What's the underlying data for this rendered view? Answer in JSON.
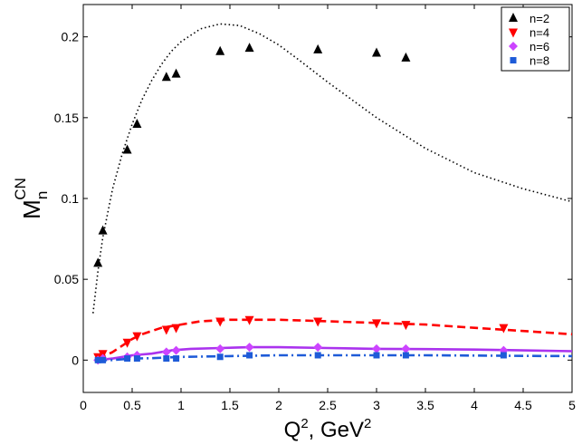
{
  "chart_data": {
    "type": "scatter",
    "xlabel": {
      "main": "Q",
      "sup1": "2",
      "rest": ", GeV",
      "sup2": "2"
    },
    "ylabel": {
      "main": "M",
      "sub": "n",
      "sup": "CN"
    },
    "xlim": [
      0,
      5
    ],
    "ylim": [
      -0.02,
      0.22
    ],
    "x_ticks": [
      0,
      0.5,
      1,
      1.5,
      2,
      2.5,
      3,
      3.5,
      4,
      4.5,
      5
    ],
    "x_tick_labels": [
      "0",
      "0.5",
      "1",
      "1.5",
      "2",
      "2.5",
      "3",
      "3.5",
      "4",
      "4.5",
      "5"
    ],
    "y_ticks": [
      0,
      0.05,
      0.1,
      0.15,
      0.2
    ],
    "y_tick_labels": [
      "0",
      "0.05",
      "0.1",
      "0.15",
      "0.2"
    ],
    "grid": false,
    "legend_position": "top-right",
    "series": [
      {
        "name": "n=2",
        "marker": "triangle-up",
        "color": "#000000",
        "points": [
          [
            0.15,
            0.06
          ],
          [
            0.2,
            0.08
          ],
          [
            0.45,
            0.13
          ],
          [
            0.55,
            0.146
          ],
          [
            0.85,
            0.175
          ],
          [
            0.95,
            0.177
          ],
          [
            1.4,
            0.191
          ],
          [
            1.7,
            0.193
          ],
          [
            2.4,
            0.192
          ],
          [
            3.0,
            0.19
          ],
          [
            3.3,
            0.187
          ]
        ]
      },
      {
        "name": "n=4",
        "marker": "triangle-down",
        "color": "#ff0000",
        "points": [
          [
            0.15,
            0.002
          ],
          [
            0.2,
            0.004
          ],
          [
            0.45,
            0.011
          ],
          [
            0.55,
            0.015
          ],
          [
            0.85,
            0.019
          ],
          [
            0.95,
            0.02
          ],
          [
            1.4,
            0.024
          ],
          [
            1.7,
            0.025
          ],
          [
            2.4,
            0.024
          ],
          [
            3.0,
            0.023
          ],
          [
            3.3,
            0.022
          ],
          [
            4.3,
            0.02
          ]
        ]
      },
      {
        "name": "n=6",
        "marker": "diamond",
        "color": "#cc44ff",
        "points": [
          [
            0.15,
            0.0
          ],
          [
            0.2,
            0.001
          ],
          [
            0.45,
            0.002
          ],
          [
            0.55,
            0.003
          ],
          [
            0.85,
            0.005
          ],
          [
            0.95,
            0.006
          ],
          [
            1.4,
            0.007
          ],
          [
            1.7,
            0.008
          ],
          [
            2.4,
            0.008
          ],
          [
            3.0,
            0.007
          ],
          [
            3.3,
            0.007
          ],
          [
            4.3,
            0.006
          ]
        ]
      },
      {
        "name": "n=8",
        "marker": "square",
        "color": "#1e5bd8",
        "points": [
          [
            0.15,
            0.0
          ],
          [
            0.2,
            0.0
          ],
          [
            0.45,
            0.001
          ],
          [
            0.55,
            0.001
          ],
          [
            0.85,
            0.001
          ],
          [
            0.95,
            0.001
          ],
          [
            1.4,
            0.002
          ],
          [
            1.7,
            0.003
          ],
          [
            2.4,
            0.003
          ],
          [
            3.0,
            0.003
          ],
          [
            3.3,
            0.003
          ],
          [
            4.3,
            0.003
          ]
        ]
      }
    ],
    "curves": [
      {
        "style": "dotted",
        "color": "#000000",
        "points": [
          [
            0.1,
            0.029
          ],
          [
            0.15,
            0.055
          ],
          [
            0.2,
            0.076
          ],
          [
            0.3,
            0.106
          ],
          [
            0.4,
            0.128
          ],
          [
            0.5,
            0.146
          ],
          [
            0.6,
            0.161
          ],
          [
            0.7,
            0.173
          ],
          [
            0.8,
            0.183
          ],
          [
            0.9,
            0.191
          ],
          [
            1.0,
            0.197
          ],
          [
            1.2,
            0.205
          ],
          [
            1.4,
            0.208
          ],
          [
            1.6,
            0.207
          ],
          [
            1.8,
            0.202
          ],
          [
            2.0,
            0.195
          ],
          [
            2.2,
            0.186
          ],
          [
            2.5,
            0.172
          ],
          [
            3.0,
            0.15
          ],
          [
            3.5,
            0.131
          ],
          [
            4.0,
            0.116
          ],
          [
            4.5,
            0.106
          ],
          [
            5.0,
            0.098
          ]
        ]
      },
      {
        "style": "dashed",
        "color": "#ff0000",
        "points": [
          [
            0.15,
            0.001
          ],
          [
            0.2,
            0.002
          ],
          [
            0.3,
            0.005
          ],
          [
            0.4,
            0.009
          ],
          [
            0.5,
            0.013
          ],
          [
            0.6,
            0.016
          ],
          [
            0.7,
            0.018
          ],
          [
            0.8,
            0.02
          ],
          [
            1.0,
            0.022
          ],
          [
            1.2,
            0.024
          ],
          [
            1.5,
            0.025
          ],
          [
            1.7,
            0.025
          ],
          [
            2.0,
            0.025
          ],
          [
            2.5,
            0.024
          ],
          [
            3.0,
            0.023
          ],
          [
            3.5,
            0.022
          ],
          [
            4.0,
            0.02
          ],
          [
            4.5,
            0.018
          ],
          [
            5.0,
            0.016
          ]
        ]
      },
      {
        "style": "solid",
        "color": "#aa33ee",
        "points": [
          [
            0.15,
            0.0
          ],
          [
            0.3,
            0.001
          ],
          [
            0.5,
            0.003
          ],
          [
            0.7,
            0.004
          ],
          [
            0.9,
            0.006
          ],
          [
            1.1,
            0.007
          ],
          [
            1.4,
            0.0075
          ],
          [
            1.7,
            0.008
          ],
          [
            2.0,
            0.008
          ],
          [
            2.5,
            0.0075
          ],
          [
            3.0,
            0.007
          ],
          [
            3.5,
            0.0068
          ],
          [
            4.0,
            0.0065
          ],
          [
            4.5,
            0.006
          ],
          [
            5.0,
            0.0055
          ]
        ]
      },
      {
        "style": "dash-dot",
        "color": "#1e5bd8",
        "points": [
          [
            0.15,
            0.0
          ],
          [
            0.3,
            0.0
          ],
          [
            0.5,
            0.001
          ],
          [
            0.7,
            0.0012
          ],
          [
            1.0,
            0.002
          ],
          [
            1.5,
            0.0025
          ],
          [
            2.0,
            0.003
          ],
          [
            2.5,
            0.003
          ],
          [
            3.0,
            0.003
          ],
          [
            3.5,
            0.003
          ],
          [
            4.0,
            0.0028
          ],
          [
            4.5,
            0.0026
          ],
          [
            5.0,
            0.0025
          ]
        ]
      }
    ]
  }
}
